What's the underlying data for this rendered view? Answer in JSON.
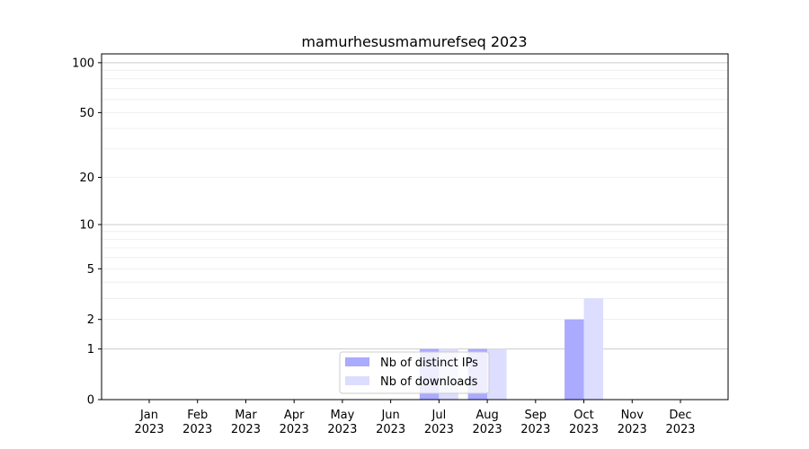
{
  "chart_data": {
    "type": "bar",
    "title": "mamurhesusmamurefseq 2023",
    "xlabel": "",
    "ylabel": "",
    "categories": [
      "Jan\n2023",
      "Feb\n2023",
      "Mar\n2023",
      "Apr\n2023",
      "May\n2023",
      "Jun\n2023",
      "Jul\n2023",
      "Aug\n2023",
      "Sep\n2023",
      "Oct\n2023",
      "Nov\n2023",
      "Dec\n2023"
    ],
    "series": [
      {
        "name": "Nb of distinct IPs",
        "values": [
          0,
          0,
          0,
          0,
          0,
          0,
          1,
          1,
          0,
          2,
          0,
          0
        ],
        "color": "#aaaaff"
      },
      {
        "name": "Nb of downloads",
        "values": [
          0,
          0,
          0,
          0,
          0,
          0,
          1,
          1,
          0,
          3,
          0,
          0
        ],
        "color": "#ddddff"
      }
    ],
    "yscale": "log(1+y)",
    "ylim": [
      0,
      113
    ],
    "yticks": [
      0,
      1,
      2,
      5,
      10,
      20,
      50,
      100
    ],
    "grid": true,
    "legend": "bottom-center"
  }
}
